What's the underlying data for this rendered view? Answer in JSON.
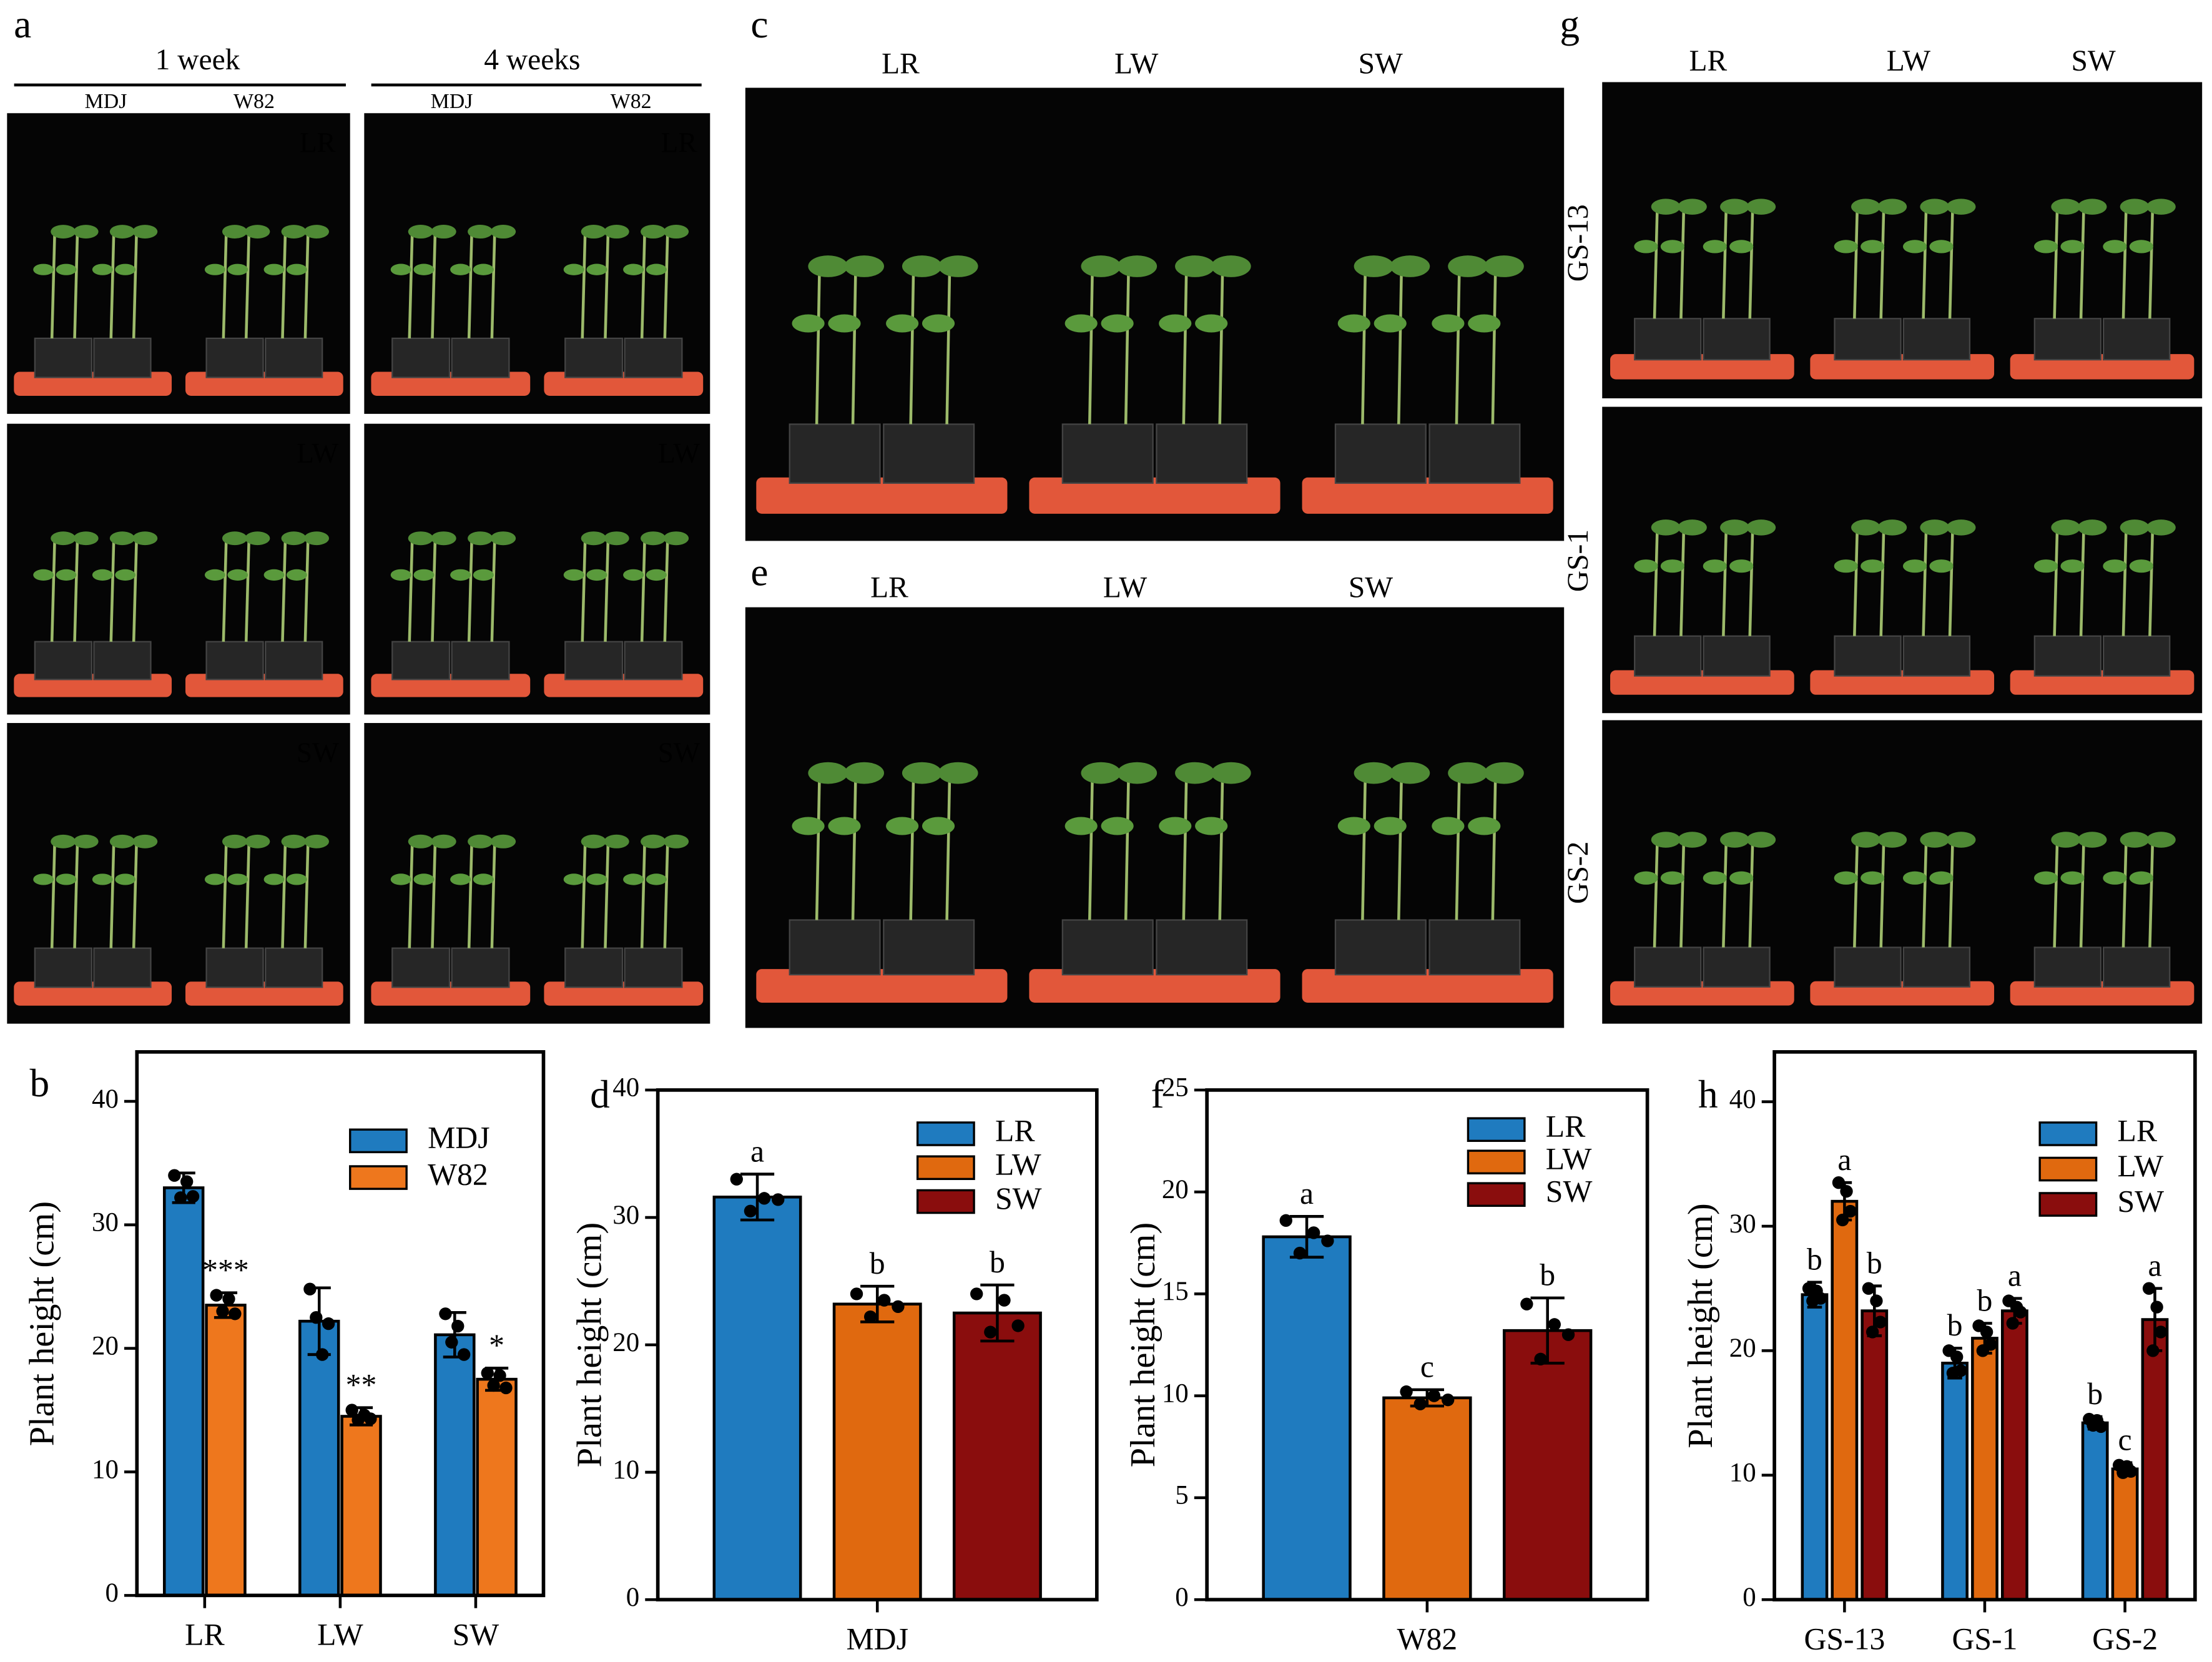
{
  "panel_letters": [
    "a",
    "b",
    "c",
    "d",
    "e",
    "f",
    "g",
    "h"
  ],
  "photo_a": {
    "columns": [
      "1 week",
      "4 weeks"
    ],
    "subcolumns": [
      "MDJ",
      "W82",
      "MDJ",
      "W82"
    ],
    "rows": [
      "LR",
      "LW",
      "SW"
    ]
  },
  "photo_c": {
    "labels": [
      "LR",
      "LW",
      "SW"
    ]
  },
  "photo_e": {
    "labels": [
      "LR",
      "LW",
      "SW"
    ]
  },
  "photo_g": {
    "columns": [
      "LR",
      "LW",
      "SW"
    ],
    "rows": [
      "GS-13",
      "GS-1",
      "GS-2"
    ]
  },
  "chart_data": [
    {
      "type": "bar",
      "y_label": "Plant height (cm)",
      "categories": [
        "LR",
        "LW",
        "SW"
      ],
      "ylim": [
        0,
        44
      ],
      "yticks": [
        0,
        10,
        20,
        30,
        40
      ],
      "series": [
        {
          "name": "MDJ",
          "color": "#1f7bbf",
          "values": [
            33,
            22.2,
            21.1
          ],
          "errors": [
            1.2,
            2.7,
            1.8
          ],
          "points": [
            [
              34.0,
              32.2,
              33.5,
              32.3
            ],
            [
              24.8,
              22.5,
              19.5,
              22.0
            ],
            [
              22.8,
              20.5,
              21.8,
              19.5
            ]
          ]
        },
        {
          "name": "W82",
          "color": "#ee771d",
          "values": [
            23.5,
            14.5,
            17.5
          ],
          "errors": [
            1.0,
            0.7,
            0.9
          ],
          "points": [
            [
              24.3,
              23.0,
              24.0,
              22.8
            ],
            [
              15.0,
              14.2,
              14.6,
              14.3
            ],
            [
              18.0,
              17.0,
              17.8,
              16.8
            ]
          ],
          "annotations": [
            "***",
            "**",
            "*"
          ]
        }
      ]
    },
    {
      "type": "bar",
      "y_label": "Plant height (cm)",
      "categories": [
        "MDJ"
      ],
      "ylim": [
        0,
        40
      ],
      "yticks": [
        0,
        10,
        20,
        30,
        40
      ],
      "series": [
        {
          "name": "LR",
          "color": "#1f7bbf",
          "values": [
            31.6
          ],
          "errors": [
            1.8
          ],
          "points": [
            [
              33.0,
              30.5,
              31.5,
              31.4
            ]
          ],
          "annotations": [
            "a"
          ]
        },
        {
          "name": "LW",
          "color": "#e0690f",
          "values": [
            23.2
          ],
          "errors": [
            1.4
          ],
          "points": [
            [
              24.0,
              22.2,
              23.5,
              23.0
            ]
          ],
          "annotations": [
            "b"
          ]
        },
        {
          "name": "SW",
          "color": "#8a0d0d",
          "values": [
            22.5
          ],
          "errors": [
            2.2
          ],
          "points": [
            [
              24.0,
              21.0,
              23.5,
              21.5
            ]
          ],
          "annotations": [
            "b"
          ]
        }
      ]
    },
    {
      "type": "bar",
      "y_label": "Plant height (cm)",
      "categories": [
        "W82"
      ],
      "ylim": [
        0,
        25
      ],
      "yticks": [
        0,
        5,
        10,
        15,
        20,
        25
      ],
      "series": [
        {
          "name": "LR",
          "color": "#1f7bbf",
          "values": [
            17.8
          ],
          "errors": [
            1.0
          ],
          "points": [
            [
              18.6,
              17.0,
              18.0,
              17.6
            ]
          ],
          "annotations": [
            "a"
          ]
        },
        {
          "name": "LW",
          "color": "#e0690f",
          "values": [
            9.9
          ],
          "errors": [
            0.4
          ],
          "points": [
            [
              10.2,
              9.6,
              10.0,
              9.8
            ]
          ],
          "annotations": [
            "c"
          ]
        },
        {
          "name": "SW",
          "color": "#8a0d0d",
          "values": [
            13.2
          ],
          "errors": [
            1.6
          ],
          "points": [
            [
              14.5,
              11.8,
              13.5,
              13.0
            ]
          ],
          "annotations": [
            "b"
          ]
        }
      ]
    },
    {
      "type": "bar",
      "y_label": "Plant height (cm)",
      "categories": [
        "GS-13",
        "GS-1",
        "GS-2"
      ],
      "ylim": [
        0,
        44
      ],
      "yticks": [
        0,
        10,
        20,
        30,
        40
      ],
      "series": [
        {
          "name": "LR",
          "color": "#1f7bbf",
          "values": [
            24.5,
            19,
            14.2
          ],
          "errors": [
            1,
            1.2,
            0.5
          ],
          "points": [
            [
              25.0,
              24.0,
              24.8,
              24.2
            ],
            [
              20.0,
              18.2,
              19.5,
              18.4
            ],
            [
              14.5,
              14.0,
              14.4,
              13.9
            ]
          ],
          "annotations": [
            "b",
            "b",
            "b"
          ]
        },
        {
          "name": "LW",
          "color": "#e0690f",
          "values": [
            32,
            21,
            10.5
          ],
          "errors": [
            1.5,
            1.2,
            0.5
          ],
          "points": [
            [
              33.5,
              30.5,
              32.8,
              31.2
            ],
            [
              22.0,
              20.0,
              21.5,
              20.5
            ],
            [
              10.8,
              10.2,
              10.7,
              10.3
            ]
          ],
          "annotations": [
            "a",
            "b",
            "c"
          ]
        },
        {
          "name": "SW",
          "color": "#8a0d0d",
          "values": [
            23.2,
            23.2,
            22.5
          ],
          "errors": [
            2,
            1,
            2.5
          ],
          "points": [
            [
              25.0,
              21.5,
              24.0,
              22.3
            ],
            [
              24.0,
              22.2,
              23.5,
              23.1
            ],
            [
              25.0,
              20.0,
              23.5,
              21.5
            ]
          ],
          "annotations": [
            "b",
            "a",
            "a"
          ]
        }
      ]
    }
  ]
}
